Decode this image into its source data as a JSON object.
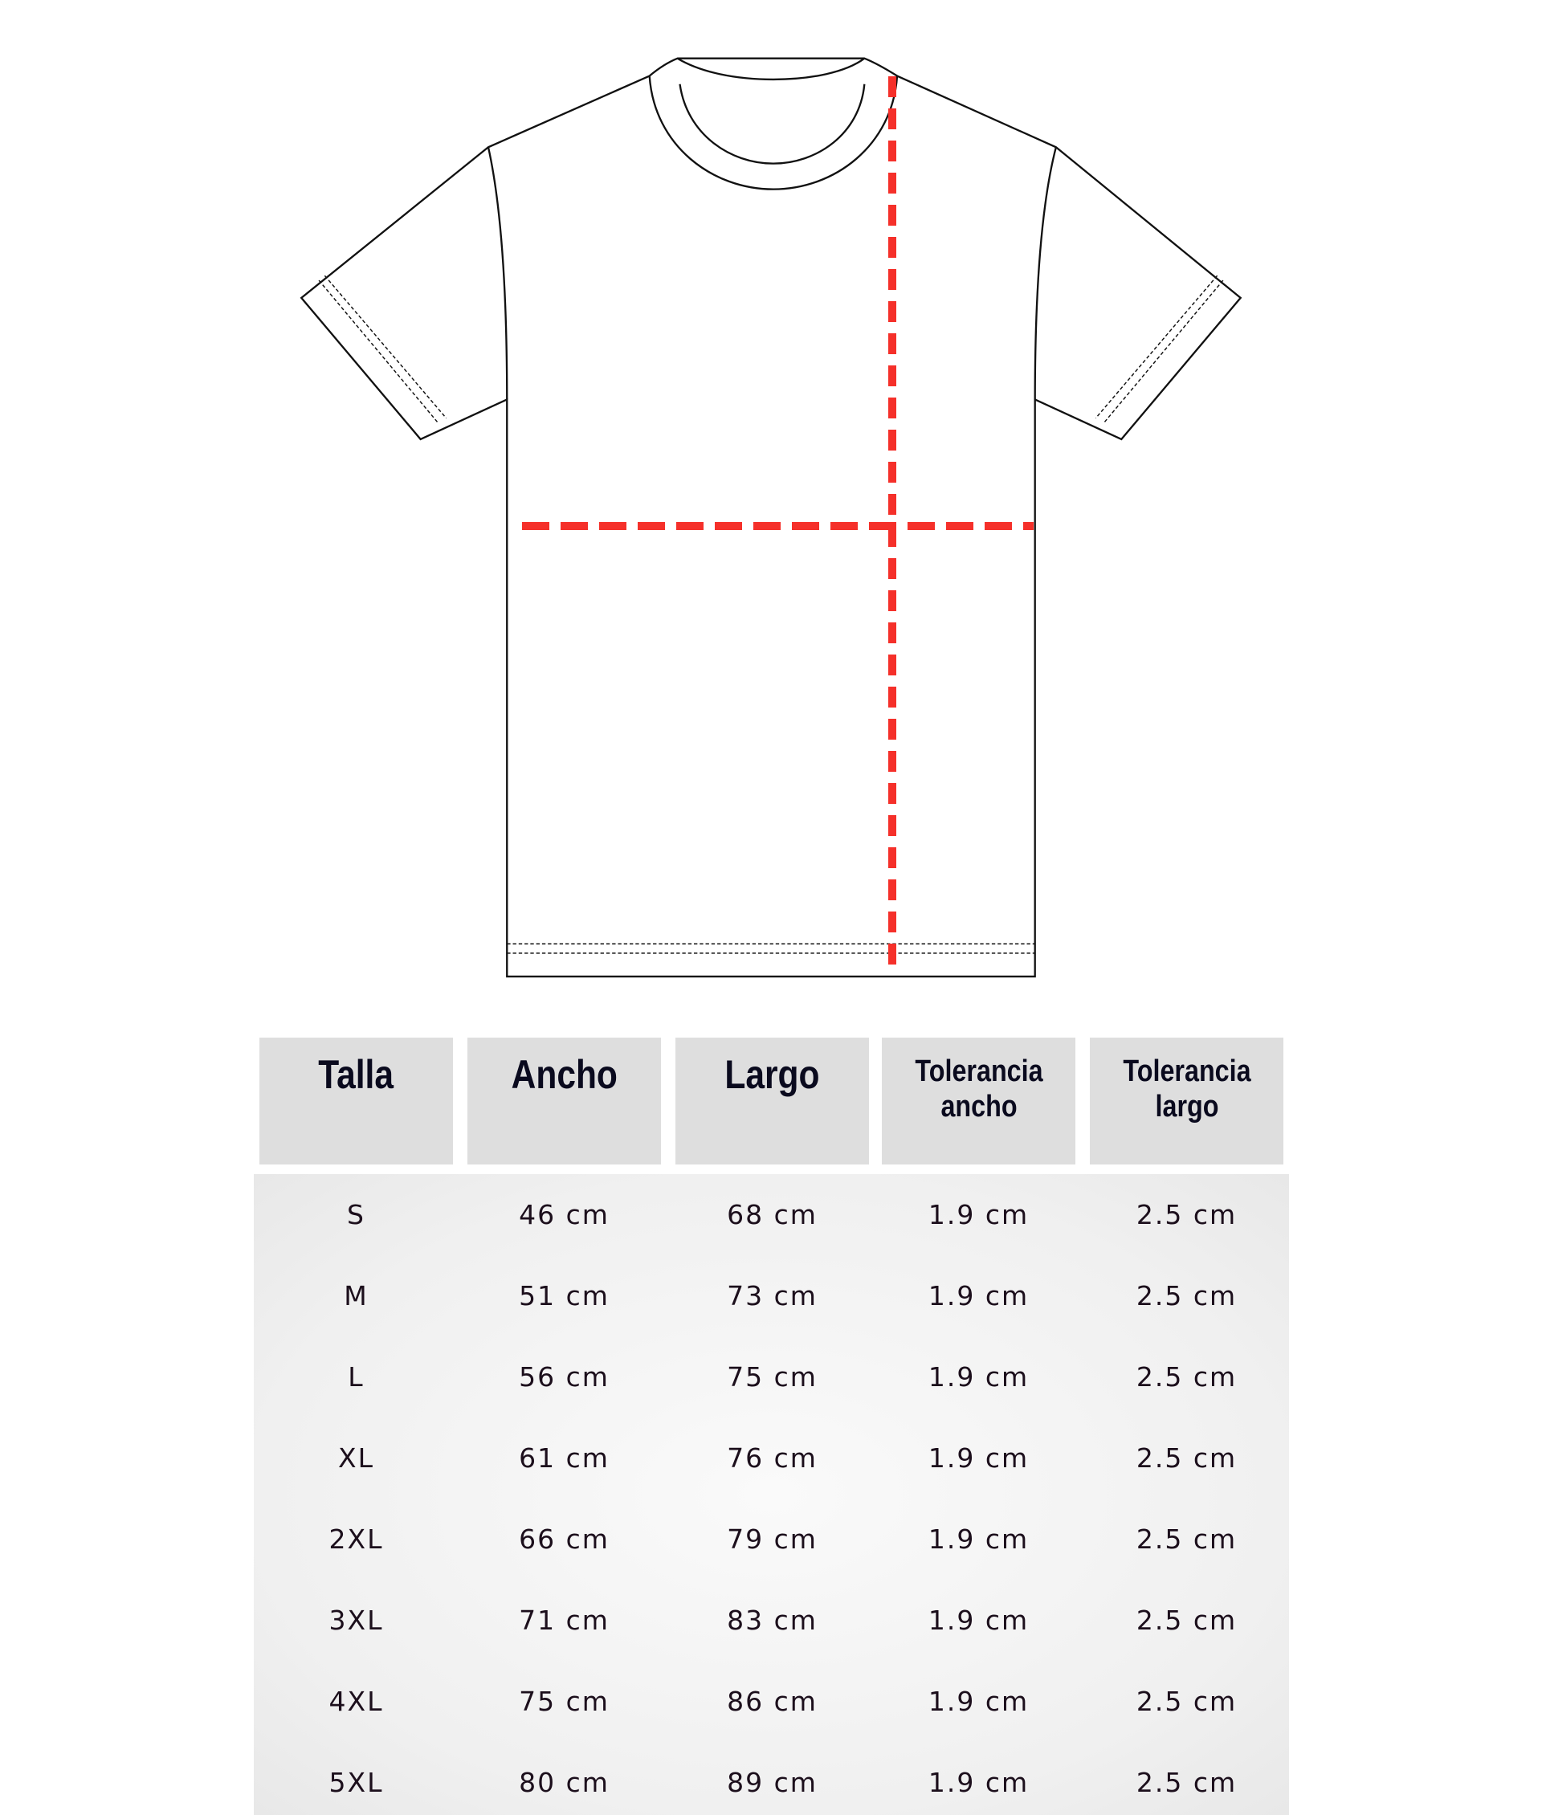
{
  "colors": {
    "measure_line": "#f5302a",
    "header_bg": "#dedede",
    "outline": "#111111"
  },
  "diagram": {
    "garment": "t-shirt-outline",
    "measurements": [
      "chest-width-dashed-line",
      "body-length-dashed-line"
    ]
  },
  "table": {
    "headers": [
      "Talla",
      "Ancho",
      "Largo",
      "Tolerancia ancho",
      "Tolerancia largo"
    ],
    "rows": [
      [
        "S",
        "46 cm",
        "68 cm",
        "1.9 cm",
        "2.5 cm"
      ],
      [
        "M",
        "51 cm",
        "73 cm",
        "1.9 cm",
        "2.5 cm"
      ],
      [
        "L",
        "56 cm",
        "75 cm",
        "1.9 cm",
        "2.5 cm"
      ],
      [
        "XL",
        "61 cm",
        "76 cm",
        "1.9 cm",
        "2.5 cm"
      ],
      [
        "2XL",
        "66 cm",
        "79 cm",
        "1.9 cm",
        "2.5 cm"
      ],
      [
        "3XL",
        "71 cm",
        "83 cm",
        "1.9 cm",
        "2.5 cm"
      ],
      [
        "4XL",
        "75 cm",
        "86 cm",
        "1.9 cm",
        "2.5 cm"
      ],
      [
        "5XL",
        "80 cm",
        "89 cm",
        "1.9 cm",
        "2.5 cm"
      ]
    ]
  }
}
